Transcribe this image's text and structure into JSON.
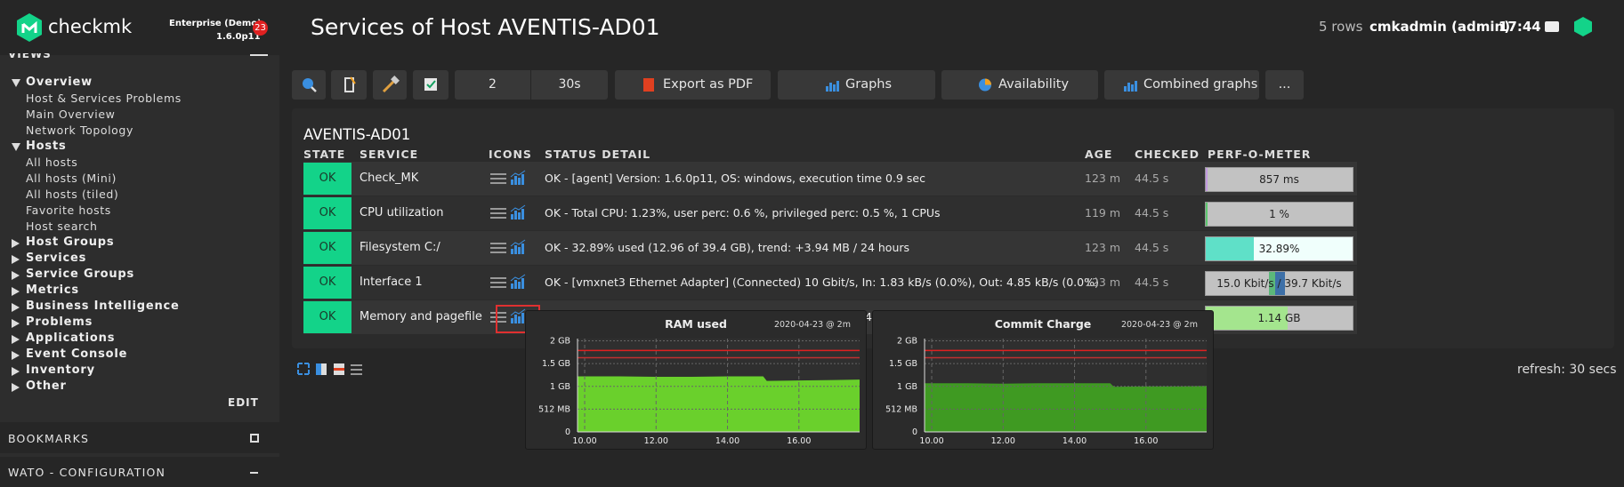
{
  "sidebar": {
    "brand": "checkmk",
    "edition": "Enterprise (Demo)",
    "version": "1.6.0p11",
    "badge": "23",
    "views_title": "VIEWS",
    "tree": [
      {
        "label": "Overview",
        "top": true,
        "expanded": true
      },
      {
        "label": "Host & Services Problems",
        "top": false
      },
      {
        "label": "Main Overview",
        "top": false
      },
      {
        "label": "Network Topology",
        "top": false
      },
      {
        "label": "Hosts",
        "top": true,
        "expanded": true
      },
      {
        "label": "All hosts",
        "top": false
      },
      {
        "label": "All hosts (Mini)",
        "top": false
      },
      {
        "label": "All hosts (tiled)",
        "top": false
      },
      {
        "label": "Favorite hosts",
        "top": false
      },
      {
        "label": "Host search",
        "top": false
      },
      {
        "label": "Host Groups",
        "top": true,
        "expanded": false
      },
      {
        "label": "Services",
        "top": true,
        "expanded": false
      },
      {
        "label": "Service Groups",
        "top": true,
        "expanded": false
      },
      {
        "label": "Metrics",
        "top": true,
        "expanded": false
      },
      {
        "label": "Business Intelligence",
        "top": true,
        "expanded": false
      },
      {
        "label": "Problems",
        "top": true,
        "expanded": false
      },
      {
        "label": "Applications",
        "top": true,
        "expanded": false
      },
      {
        "label": "Event Console",
        "top": true,
        "expanded": false
      },
      {
        "label": "Inventory",
        "top": true,
        "expanded": false
      },
      {
        "label": "Other",
        "top": true,
        "expanded": false
      }
    ],
    "edit": "EDIT",
    "bookmarks": "BOOKMARKS",
    "wato": "WATO - CONFIGURATION"
  },
  "header": {
    "title": "Services of Host AVENTIS-AD01",
    "rows": "5 rows",
    "user": "cmkadmin (admin)",
    "time": "17:44"
  },
  "toolbar": {
    "num": "2",
    "refresh": "30s",
    "buttons": [
      "Export as PDF",
      "Graphs",
      "Availability",
      "Combined graphs",
      "..."
    ]
  },
  "table": {
    "host": "AVENTIS-AD01",
    "columns": [
      "STATE",
      "SERVICE",
      "ICONS",
      "STATUS DETAIL",
      "AGE",
      "CHECKED",
      "PERF-O-METER"
    ],
    "rows": [
      {
        "state": "OK",
        "service": "Check_MK",
        "detail": "OK - [agent] Version: 1.6.0p11, OS: windows, execution time 0.9 sec",
        "age": "123 m",
        "checked": "44.5 s",
        "perf": {
          "label": "857 ms",
          "segments": [
            {
              "value": 1,
              "color": "#c39be0"
            },
            {
              "value": 99,
              "color": "#c2c2c2"
            }
          ]
        }
      },
      {
        "state": "OK",
        "service": "CPU utilization",
        "detail": "OK - Total CPU: 1.23%, user perc: 0.6 %, privileged perc: 0.5 %, 1 CPUs",
        "age": "119 m",
        "checked": "44.5 s",
        "perf": {
          "label": "1 %",
          "segments": [
            {
              "value": 1,
              "color": "#5fc870"
            },
            {
              "value": 99,
              "color": "#c2c2c2"
            }
          ]
        }
      },
      {
        "state": "OK",
        "service": "Filesystem C:/",
        "detail": "OK - 32.89% used (12.96 of 39.4 GB), trend: +3.94 MB / 24 hours",
        "age": "123 m",
        "checked": "44.5 s",
        "perf": {
          "label": "32.89%",
          "segments": [
            {
              "value": 32.89,
              "color": "#5fe0c8"
            },
            {
              "value": 67.11,
              "color": "#f0fffc"
            }
          ]
        }
      },
      {
        "state": "OK",
        "service": "Interface 1",
        "detail": "OK - [vmxnet3 Ethernet Adapter] (Connected) 10 Gbit/s, In: 1.83 kB/s (0.0%), Out: 4.85 kB/s (0.0%)",
        "age": "123 m",
        "checked": "44.5 s",
        "perf": {
          "label": "15.0 Kbit/s / 39.7 Kbit/s",
          "segments": [
            {
              "value": 43,
              "color": "#c2c2c2"
            },
            {
              "value": 4,
              "color": "#5cb87a"
            },
            {
              "value": 7,
              "color": "#3d70a8"
            },
            {
              "value": 46,
              "color": "#c2c2c2"
            }
          ]
        }
      },
      {
        "state": "OK",
        "service": "Memory and pagefile",
        "detail": "4",
        "age": "",
        "checked": "",
        "perf": {
          "label": "1.14 GB",
          "segments": [
            {
              "value": 56,
              "color": "#a4e58e"
            },
            {
              "value": 44,
              "color": "#c2c2c2"
            }
          ]
        }
      }
    ]
  },
  "graphs": [
    {
      "title": "RAM used",
      "timestamp": "2020-04-23 @ 2m",
      "color": "#6ad02c",
      "ylim": [
        0,
        2.05
      ],
      "yticks": [
        {
          "value": 0,
          "label": "0"
        },
        {
          "value": 0.5,
          "label": "512 MB"
        },
        {
          "value": 1,
          "label": "1 GB"
        },
        {
          "value": 1.5,
          "label": "1.5 GB"
        },
        {
          "value": 2,
          "label": "2 GB"
        }
      ],
      "xlim": [
        9.8,
        17.7
      ],
      "xticks": [
        {
          "value": 10,
          "label": "10.00"
        },
        {
          "value": 12,
          "label": "12.00"
        },
        {
          "value": 14,
          "label": "14.00"
        },
        {
          "value": 16,
          "label": "16.00"
        }
      ],
      "levels": [
        {
          "value": 1.79,
          "color": "#e02020"
        },
        {
          "value": 1.63,
          "color": "#c03030"
        }
      ],
      "x": [
        9.8,
        11,
        12,
        13,
        14,
        15,
        15.1,
        16,
        17,
        17.7
      ],
      "values": [
        1.22,
        1.22,
        1.21,
        1.21,
        1.22,
        1.22,
        1.12,
        1.13,
        1.14,
        1.15
      ]
    },
    {
      "title": "Commit Charge",
      "timestamp": "2020-04-23 @ 2m",
      "color": "#3f9a22",
      "ylim": [
        0,
        2.05
      ],
      "yticks": [
        {
          "value": 0,
          "label": "0"
        },
        {
          "value": 0.5,
          "label": "512 MB"
        },
        {
          "value": 1,
          "label": "1 GB"
        },
        {
          "value": 1.5,
          "label": "1.5 GB"
        },
        {
          "value": 2,
          "label": "2 GB"
        }
      ],
      "xlim": [
        9.8,
        17.7
      ],
      "xticks": [
        {
          "value": 10,
          "label": "10.00"
        },
        {
          "value": 12,
          "label": "12.00"
        },
        {
          "value": 14,
          "label": "14.00"
        },
        {
          "value": 16,
          "label": "16.00"
        }
      ],
      "levels": [
        {
          "value": 1.79,
          "color": "#e02020"
        },
        {
          "value": 1.63,
          "color": "#c03030"
        }
      ],
      "x": [
        9.8,
        11,
        12,
        13,
        14,
        15,
        15.1,
        16,
        17,
        17.7
      ],
      "values": [
        1.07,
        1.07,
        1.06,
        1.07,
        1.07,
        1.07,
        0.99,
        1.0,
        1.0,
        1.01
      ]
    }
  ],
  "refresh": "refresh: 30 secs"
}
